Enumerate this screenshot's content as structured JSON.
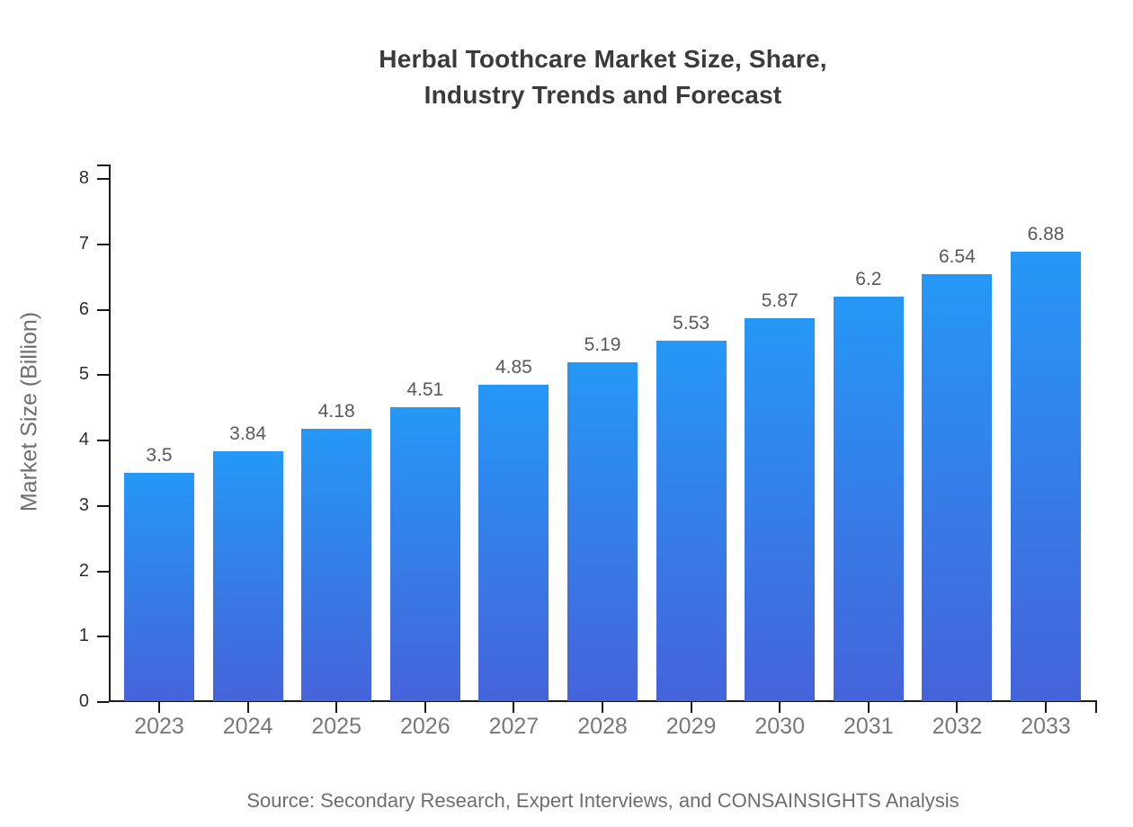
{
  "title": {
    "line1": "Herbal Toothcare Market Size, Share,",
    "line2": "Industry Trends and Forecast"
  },
  "source_note": "Source: Secondary Research, Expert Interviews, and CONSAINSIGHTS Analysis",
  "colors": {
    "background": "#ffffff",
    "bar_gradient_top": "#2598F6",
    "bar_gradient_bottom": "#4563DA",
    "axis": "#1a1a1a",
    "title_text": "#3b3b3b",
    "x_tick_label": "#77787b",
    "y_tick_label": "#2e2e2e",
    "value_label": "#58595b",
    "axis_title": "#6f6f6f",
    "source_text": "#6d6e70"
  },
  "chart_data": {
    "type": "bar",
    "title": "Herbal Toothcare Market Size, Share, Industry Trends and Forecast",
    "categories": [
      "2023",
      "2024",
      "2025",
      "2026",
      "2027",
      "2028",
      "2029",
      "2030",
      "2031",
      "2032",
      "2033"
    ],
    "values": [
      3.5,
      3.84,
      4.18,
      4.51,
      4.85,
      5.19,
      5.53,
      5.87,
      6.2,
      6.54,
      6.88
    ],
    "value_labels": [
      "3.5",
      "3.84",
      "4.18",
      "4.51",
      "4.85",
      "5.19",
      "5.53",
      "5.87",
      "6.2",
      "6.54",
      "6.88"
    ],
    "xlabel": "",
    "ylabel": "Market Size (Billion)",
    "ylim": [
      0,
      8.22
    ],
    "yticks": [
      0,
      1,
      2,
      3,
      4,
      5,
      6,
      7,
      8
    ],
    "grid": false,
    "legend": false,
    "bar_color_gradient": [
      "#2598F6",
      "#4563DA"
    ]
  }
}
